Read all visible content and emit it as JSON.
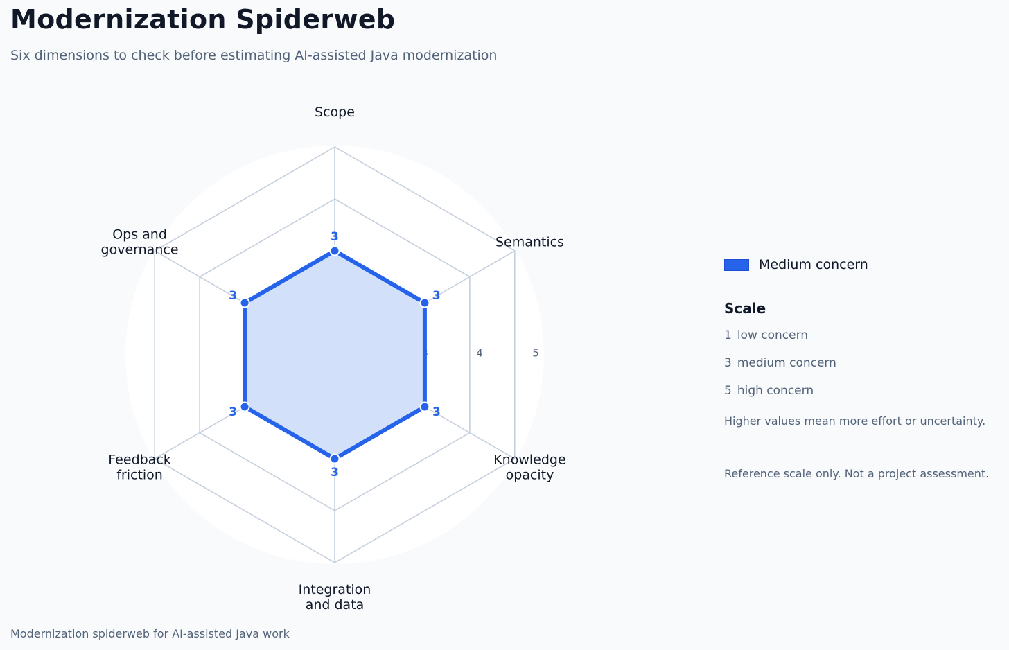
{
  "header": {
    "title": "Modernization Spiderweb",
    "subtitle": "Six dimensions to check before estimating AI-assisted Java modernization"
  },
  "footer": {
    "caption": "Modernization spiderweb for AI-assisted Java work"
  },
  "chart_data": {
    "type": "radar",
    "axes": [
      {
        "label": "Scope"
      },
      {
        "label": "Semantics"
      },
      {
        "label": "Knowledge\nopacity"
      },
      {
        "label": "Integration\nand data"
      },
      {
        "label": "Feedback\nfriction"
      },
      {
        "label": "Ops and\ngovernance"
      }
    ],
    "rlim": [
      1,
      5
    ],
    "rings": [
      3,
      4,
      5
    ],
    "ring_tick_labels": [
      "3",
      "4",
      "5"
    ],
    "series": [
      {
        "name": "Medium concern",
        "values": [
          3,
          3,
          3,
          3,
          3,
          3
        ],
        "color": "#2563eb",
        "fill": "#d3e0fa"
      }
    ],
    "data_labels_shown": true,
    "legend_position": "right"
  },
  "legend": {
    "series_label": "Medium concern",
    "scale_title": "Scale",
    "scale_items": [
      {
        "num": "1",
        "text": "low concern"
      },
      {
        "num": "3",
        "text": "medium concern"
      },
      {
        "num": "5",
        "text": "high concern"
      }
    ],
    "note": "Higher values mean more effort or uncertainty.",
    "disclaimer": "Reference scale only. Not a project assessment."
  },
  "colors": {
    "accent": "#2563eb",
    "grid": "#c5d0de",
    "background": "#f8fafc",
    "plot_background": "#ffffff"
  }
}
